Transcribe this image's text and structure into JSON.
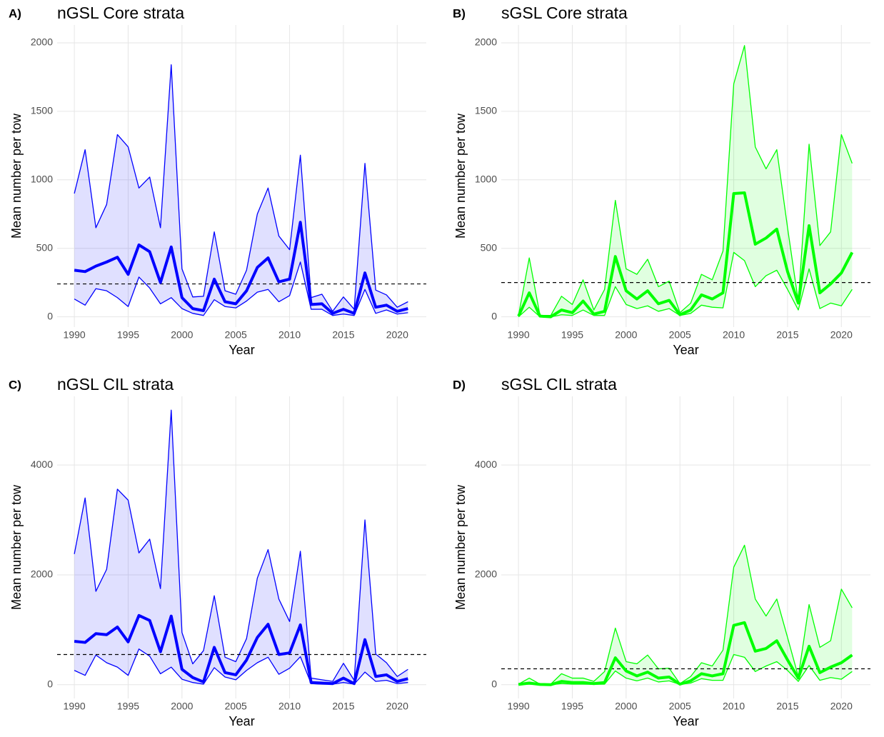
{
  "chart_data": [
    {
      "type": "ribbon-line",
      "tag": "A)",
      "title": "nGSL Core strata",
      "x_label": "Year",
      "y_label": "Mean number per tow",
      "color": "#0000ff",
      "x": [
        1990,
        1991,
        1992,
        1993,
        1994,
        1995,
        1996,
        1997,
        1998,
        1999,
        2000,
        2001,
        2002,
        2003,
        2004,
        2005,
        2006,
        2007,
        2008,
        2009,
        2010,
        2011,
        2012,
        2013,
        2014,
        2015,
        2016,
        2017,
        2018,
        2019,
        2020,
        2021
      ],
      "values": [
        340,
        330,
        370,
        400,
        435,
        310,
        525,
        475,
        250,
        510,
        140,
        60,
        45,
        275,
        110,
        95,
        190,
        360,
        430,
        255,
        275,
        690,
        90,
        95,
        25,
        55,
        25,
        320,
        70,
        85,
        40,
        60
      ],
      "upper": [
        900,
        1220,
        650,
        820,
        1330,
        1240,
        940,
        1020,
        650,
        1840,
        350,
        145,
        150,
        620,
        190,
        165,
        340,
        750,
        940,
        590,
        490,
        1180,
        140,
        165,
        40,
        145,
        55,
        1120,
        195,
        160,
        70,
        110
      ],
      "lower": [
        130,
        85,
        205,
        190,
        140,
        75,
        290,
        210,
        95,
        140,
        60,
        25,
        10,
        125,
        75,
        65,
        115,
        180,
        200,
        110,
        155,
        400,
        55,
        55,
        10,
        20,
        10,
        200,
        25,
        50,
        20,
        30
      ],
      "reference": 240,
      "xlim": [
        1988.4,
        2022.7
      ],
      "xticks": [
        1990,
        1995,
        2000,
        2005,
        2010,
        2015,
        2020
      ],
      "ylim": [
        -75,
        2130
      ],
      "yticks": [
        0,
        500,
        1000,
        1500,
        2000
      ],
      "grid": true
    },
    {
      "type": "ribbon-line",
      "tag": "B)",
      "title": "sGSL Core strata",
      "x_label": "Year",
      "y_label": "Mean number per tow",
      "color": "#00ff00",
      "x": [
        1990,
        1991,
        1992,
        1993,
        1994,
        1995,
        1996,
        1997,
        1998,
        1999,
        2000,
        2001,
        2002,
        2003,
        2004,
        2005,
        2006,
        2007,
        2008,
        2009,
        2010,
        2011,
        2012,
        2013,
        2014,
        2015,
        2016,
        2017,
        2018,
        2019,
        2020,
        2021
      ],
      "values": [
        5,
        175,
        5,
        0,
        50,
        30,
        115,
        20,
        40,
        440,
        190,
        130,
        190,
        95,
        120,
        15,
        50,
        160,
        130,
        175,
        900,
        905,
        530,
        575,
        640,
        330,
        100,
        665,
        175,
        240,
        320,
        470
      ],
      "upper": [
        10,
        430,
        10,
        10,
        150,
        90,
        270,
        50,
        200,
        850,
        350,
        310,
        420,
        220,
        260,
        30,
        100,
        310,
        270,
        480,
        1700,
        1980,
        1240,
        1080,
        1220,
        650,
        110,
        1260,
        520,
        620,
        1330,
        1120
      ],
      "lower": [
        0,
        70,
        0,
        0,
        15,
        10,
        50,
        10,
        10,
        220,
        90,
        60,
        80,
        40,
        60,
        10,
        25,
        85,
        70,
        65,
        470,
        410,
        220,
        300,
        340,
        200,
        50,
        350,
        60,
        100,
        80,
        200
      ],
      "reference": 250,
      "xlim": [
        1988.4,
        2022.7
      ],
      "xticks": [
        1990,
        1995,
        2000,
        2005,
        2010,
        2015,
        2020
      ],
      "ylim": [
        -75,
        2130
      ],
      "yticks": [
        0,
        500,
        1000,
        1500,
        2000
      ],
      "grid": true
    },
    {
      "type": "ribbon-line",
      "tag": "C)",
      "title": "nGSL CIL strata",
      "x_label": "Year",
      "y_label": "Mean number per tow",
      "color": "#0000ff",
      "x": [
        1990,
        1991,
        1992,
        1993,
        1994,
        1995,
        1996,
        1997,
        1998,
        1999,
        2000,
        2001,
        2002,
        2003,
        2004,
        2005,
        2006,
        2007,
        2008,
        2009,
        2010,
        2011,
        2012,
        2013,
        2014,
        2015,
        2016,
        2017,
        2018,
        2019,
        2020,
        2021
      ],
      "values": [
        790,
        770,
        930,
        910,
        1050,
        780,
        1260,
        1170,
        600,
        1250,
        280,
        130,
        50,
        680,
        220,
        180,
        450,
        860,
        1100,
        550,
        580,
        1090,
        40,
        30,
        20,
        120,
        20,
        820,
        150,
        180,
        60,
        110
      ],
      "upper": [
        2380,
        3400,
        1700,
        2100,
        3560,
        3360,
        2400,
        2650,
        1750,
        5000,
        950,
        380,
        620,
        1620,
        500,
        420,
        840,
        1940,
        2460,
        1560,
        1150,
        2430,
        120,
        90,
        60,
        390,
        80,
        3000,
        560,
        400,
        150,
        280
      ],
      "lower": [
        260,
        170,
        540,
        400,
        320,
        170,
        650,
        520,
        200,
        320,
        100,
        40,
        10,
        310,
        140,
        90,
        260,
        400,
        500,
        190,
        300,
        510,
        20,
        10,
        10,
        40,
        10,
        230,
        60,
        80,
        20,
        40
      ],
      "reference": 550,
      "xlim": [
        1988.4,
        2022.7
      ],
      "xticks": [
        1990,
        1995,
        2000,
        2005,
        2010,
        2015,
        2020
      ],
      "ylim": [
        -250,
        5250
      ],
      "yticks": [
        0,
        2000,
        4000
      ],
      "grid": true
    },
    {
      "type": "ribbon-line",
      "tag": "D)",
      "title": "sGSL CIL strata",
      "x_label": "Year",
      "y_label": "Mean number per tow",
      "color": "#00ff00",
      "x": [
        1990,
        1991,
        1992,
        1993,
        1994,
        1995,
        1996,
        1997,
        1998,
        1999,
        2000,
        2001,
        2002,
        2003,
        2004,
        2005,
        2006,
        2007,
        2008,
        2009,
        2010,
        2011,
        2012,
        2013,
        2014,
        2015,
        2016,
        2017,
        2018,
        2019,
        2020,
        2021
      ],
      "values": [
        5,
        30,
        5,
        0,
        60,
        40,
        40,
        20,
        40,
        490,
        250,
        160,
        230,
        120,
        140,
        10,
        70,
        200,
        160,
        200,
        1080,
        1130,
        610,
        660,
        800,
        450,
        120,
        700,
        220,
        320,
        400,
        540
      ],
      "upper": [
        10,
        120,
        10,
        10,
        200,
        120,
        120,
        60,
        240,
        1030,
        420,
        380,
        540,
        290,
        300,
        20,
        150,
        400,
        340,
        630,
        2140,
        2540,
        1560,
        1250,
        1560,
        860,
        150,
        1460,
        680,
        800,
        1740,
        1400
      ],
      "lower": [
        0,
        10,
        0,
        0,
        20,
        10,
        10,
        5,
        10,
        250,
        120,
        70,
        120,
        50,
        70,
        5,
        30,
        110,
        80,
        80,
        550,
        500,
        240,
        340,
        420,
        260,
        60,
        350,
        80,
        130,
        100,
        240
      ],
      "reference": 290,
      "xlim": [
        1988.4,
        2022.7
      ],
      "xticks": [
        1990,
        1995,
        2000,
        2005,
        2010,
        2015,
        2020
      ],
      "ylim": [
        -250,
        5250
      ],
      "yticks": [
        0,
        2000,
        4000
      ],
      "grid": true
    }
  ]
}
